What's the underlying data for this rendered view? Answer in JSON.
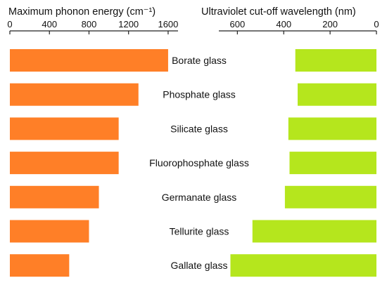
{
  "chart_data": [
    {
      "type": "bar",
      "orientation": "horizontal",
      "title": "",
      "xlabel": "Maximum phonon energy (cm⁻¹)",
      "xlim": [
        0,
        1700
      ],
      "xticks": [
        0,
        400,
        800,
        1200,
        1600
      ],
      "bar_color": "#ff7f27",
      "categories": [
        "Borate glass",
        "Phosphate glass",
        "Silicate glass",
        "Fluorophosphate glass",
        "Germanate glass",
        "Tellurite glass",
        "Gallate glass"
      ],
      "values": [
        1600,
        1300,
        1100,
        1100,
        900,
        800,
        600
      ]
    },
    {
      "type": "bar",
      "orientation": "horizontal",
      "title": "",
      "xlabel": "Ultraviolet cut-off wavelength (nm)",
      "xlim": [
        0,
        680
      ],
      "x_reversed": true,
      "xticks": [
        600,
        400,
        200,
        0
      ],
      "bar_color": "#b5e61d",
      "categories": [
        "Borate glass",
        "Phosphate glass",
        "Silicate glass",
        "Fluorophosphate glass",
        "Germanate glass",
        "Tellurite glass",
        "Gallate glass"
      ],
      "values": [
        350,
        340,
        380,
        375,
        395,
        535,
        630
      ]
    }
  ]
}
